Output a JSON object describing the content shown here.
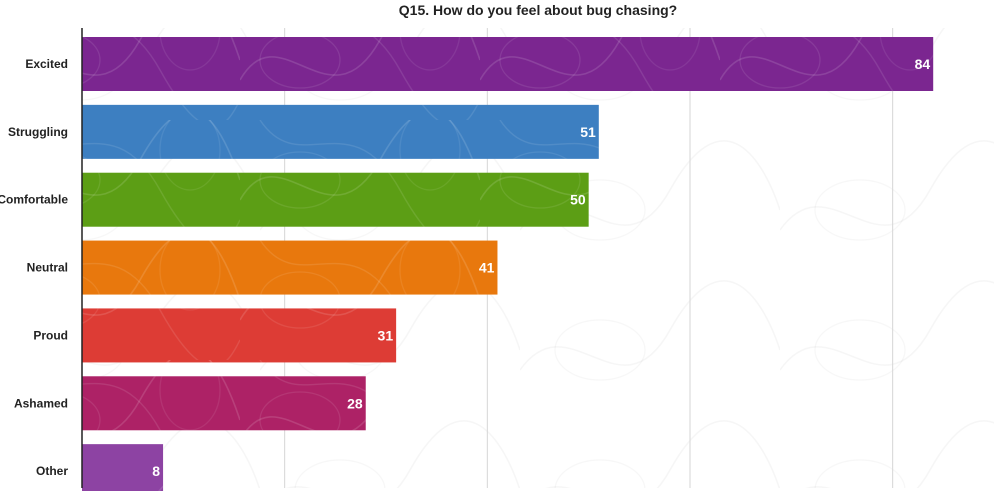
{
  "chart_data": {
    "type": "bar",
    "orientation": "horizontal",
    "title": "Q15. How do you feel about bug chasing?",
    "xlabel": "",
    "ylabel": "",
    "categories": [
      "Excited",
      "Struggling",
      "Comfortable",
      "Neutral",
      "Proud",
      "Ashamed",
      "Other"
    ],
    "values": [
      84,
      51,
      50,
      41,
      31,
      28,
      8
    ],
    "colors": [
      "#7b2690",
      "#3d7fc1",
      "#5c9e15",
      "#e8780d",
      "#dd3c35",
      "#ad2266",
      "#8d43a3"
    ],
    "xlim": [
      0,
      90
    ],
    "grid": true,
    "legend": "none"
  }
}
